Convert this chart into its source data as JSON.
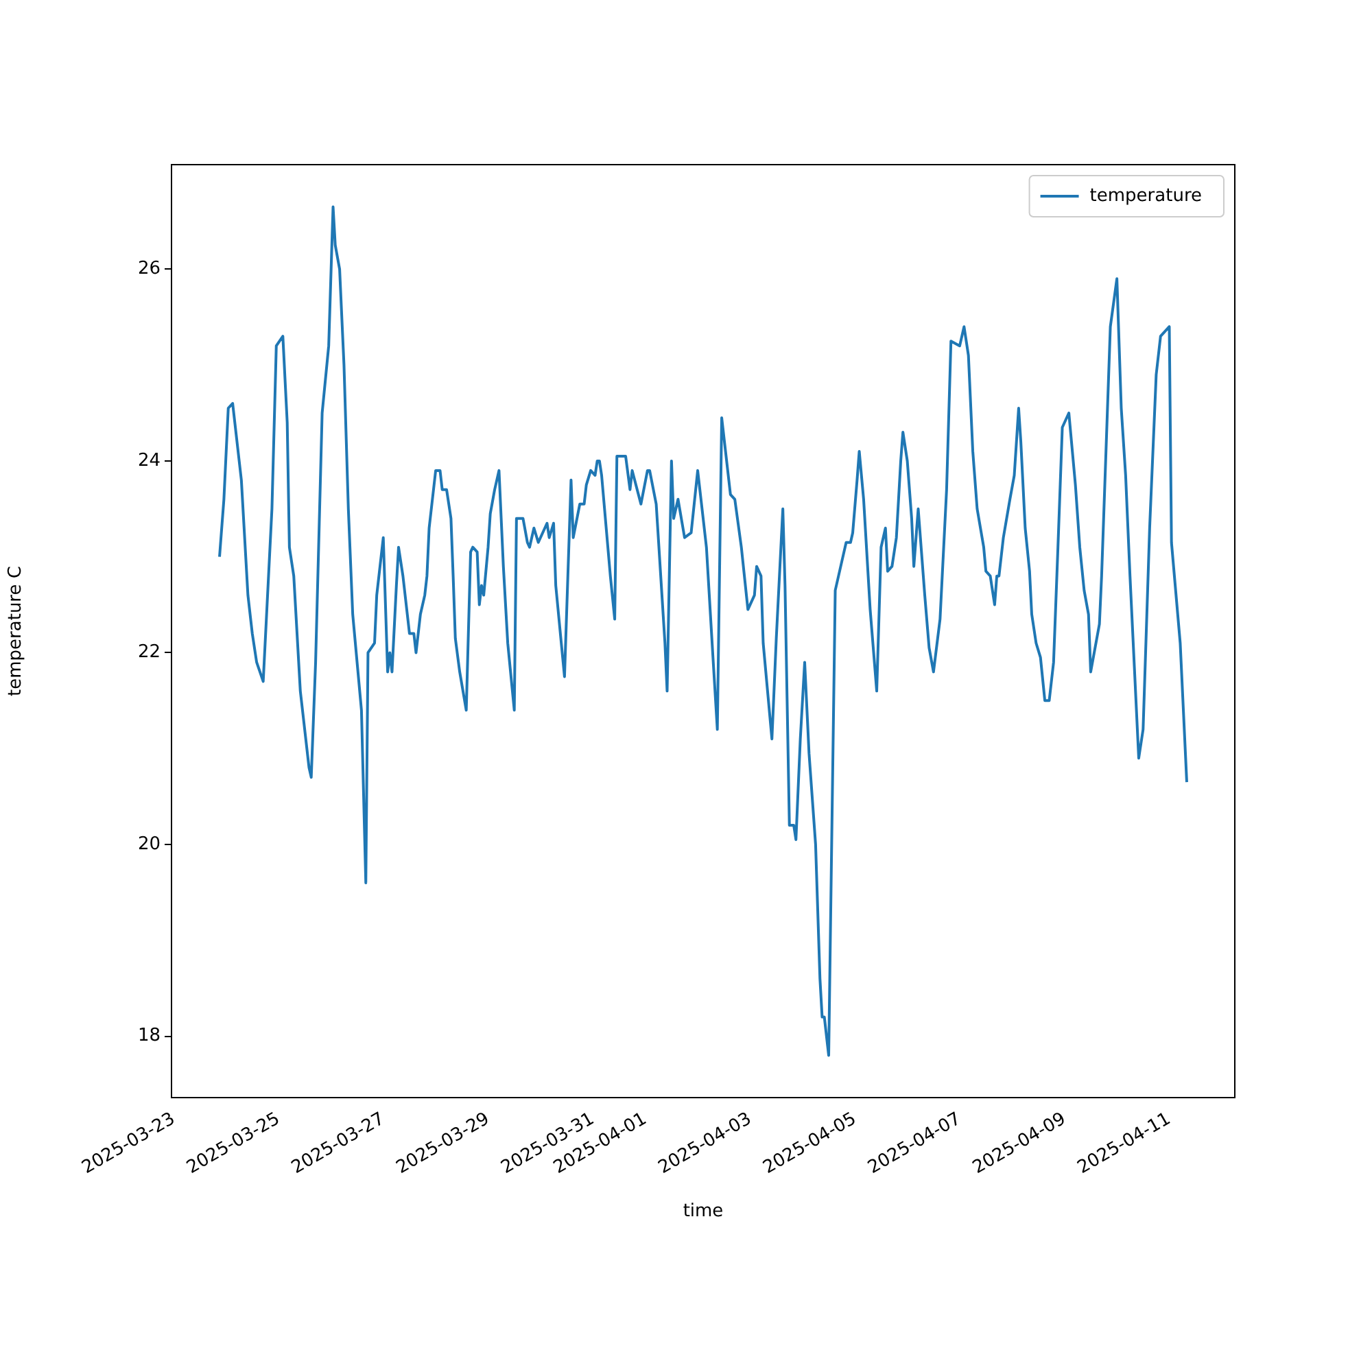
{
  "chart_data": {
    "type": "line",
    "xlabel": "time",
    "ylabel": "temperature C",
    "x": [
      "2025-03-23T21:00",
      "2025-03-23T23:00",
      "2025-03-24T01:00",
      "2025-03-24T03:00",
      "2025-03-24T07:00",
      "2025-03-24T10:00",
      "2025-03-24T12:00",
      "2025-03-24T14:00",
      "2025-03-24T17:00",
      "2025-03-24T21:00",
      "2025-03-24T23:00",
      "2025-03-25T02:00",
      "2025-03-25T04:00",
      "2025-03-25T05:00",
      "2025-03-25T07:00",
      "2025-03-25T10:00",
      "2025-03-25T14:00",
      "2025-03-25T15:00",
      "2025-03-25T17:00",
      "2025-03-25T20:00",
      "2025-03-25T23:00",
      "2025-03-26T01:00",
      "2025-03-26T02:00",
      "2025-03-26T04:00",
      "2025-03-26T06:00",
      "2025-03-26T08:00",
      "2025-03-26T10:00",
      "2025-03-26T14:00",
      "2025-03-26T16:00",
      "2025-03-26T17:00",
      "2025-03-26T20:00",
      "2025-03-26T21:00",
      "2025-03-27T00:00",
      "2025-03-27T02:00",
      "2025-03-27T03:00",
      "2025-03-27T04:00",
      "2025-03-27T06:00",
      "2025-03-27T07:00",
      "2025-03-27T09:00",
      "2025-03-27T11:00",
      "2025-03-27T12:00",
      "2025-03-27T14:00",
      "2025-03-27T15:00",
      "2025-03-27T17:00",
      "2025-03-27T19:00",
      "2025-03-27T20:00",
      "2025-03-27T21:00",
      "2025-03-28T00:00",
      "2025-03-28T02:00",
      "2025-03-28T03:00",
      "2025-03-28T05:00",
      "2025-03-28T07:00",
      "2025-03-28T08:00",
      "2025-03-28T09:00",
      "2025-03-28T11:00",
      "2025-03-28T14:00",
      "2025-03-28T16:00",
      "2025-03-28T17:00",
      "2025-03-28T19:00",
      "2025-03-28T20:00",
      "2025-03-28T21:00",
      "2025-03-28T22:00",
      "2025-03-29T00:00",
      "2025-03-29T01:00",
      "2025-03-29T03:00",
      "2025-03-29T05:00",
      "2025-03-29T07:00",
      "2025-03-29T09:00",
      "2025-03-29T12:00",
      "2025-03-29T13:00",
      "2025-03-29T16:00",
      "2025-03-29T18:00",
      "2025-03-29T19:00",
      "2025-03-29T21:00",
      "2025-03-29T23:00",
      "2025-03-30T03:00",
      "2025-03-30T04:00",
      "2025-03-30T06:00",
      "2025-03-30T07:00",
      "2025-03-30T11:00",
      "2025-03-30T14:00",
      "2025-03-30T15:00",
      "2025-03-30T18:00",
      "2025-03-30T20:00",
      "2025-03-30T21:00",
      "2025-03-30T23:00",
      "2025-03-31T01:00",
      "2025-03-31T02:00",
      "2025-03-31T03:00",
      "2025-03-31T04:00",
      "2025-03-31T08:00",
      "2025-03-31T10:00",
      "2025-03-31T11:00",
      "2025-03-31T15:00",
      "2025-03-31T17:00",
      "2025-03-31T18:00",
      "2025-03-31T22:00",
      "2025-04-01T01:00",
      "2025-04-01T02:00",
      "2025-04-01T05:00",
      "2025-04-01T09:00",
      "2025-04-01T10:00",
      "2025-04-01T12:00",
      "2025-04-01T13:00",
      "2025-04-01T15:00",
      "2025-04-01T18:00",
      "2025-04-01T21:00",
      "2025-04-02T00:00",
      "2025-04-02T04:00",
      "2025-04-02T07:00",
      "2025-04-02T09:00",
      "2025-04-02T11:00",
      "2025-04-02T15:00",
      "2025-04-02T17:00",
      "2025-04-02T20:00",
      "2025-04-02T23:00",
      "2025-04-03T02:00",
      "2025-04-03T03:00",
      "2025-04-03T05:00",
      "2025-04-03T06:00",
      "2025-04-03T10:00",
      "2025-04-03T12:00",
      "2025-04-03T15:00",
      "2025-04-03T16:00",
      "2025-04-03T18:00",
      "2025-04-03T20:00",
      "2025-04-03T21:00",
      "2025-04-03T23:00",
      "2025-04-04T01:00",
      "2025-04-04T03:00",
      "2025-04-04T06:00",
      "2025-04-04T08:00",
      "2025-04-04T09:00",
      "2025-04-04T10:00",
      "2025-04-04T12:00",
      "2025-04-04T15:00",
      "2025-04-04T18:00",
      "2025-04-04T20:00",
      "2025-04-04T22:00",
      "2025-04-04T23:00",
      "2025-04-05T01:00",
      "2025-04-05T02:00",
      "2025-04-05T04:00",
      "2025-04-05T07:00",
      "2025-04-05T10:00",
      "2025-04-05T12:00",
      "2025-04-05T14:00",
      "2025-04-05T15:00",
      "2025-04-05T17:00",
      "2025-04-05T19:00",
      "2025-04-05T21:00",
      "2025-04-05T22:00",
      "2025-04-06T00:00",
      "2025-04-06T02:00",
      "2025-04-06T03:00",
      "2025-04-06T05:00",
      "2025-04-06T08:00",
      "2025-04-06T10:00",
      "2025-04-06T12:00",
      "2025-04-06T15:00",
      "2025-04-06T18:00",
      "2025-04-06T20:00",
      "2025-04-07T00:00",
      "2025-04-07T02:00",
      "2025-04-07T04:00",
      "2025-04-07T06:00",
      "2025-04-07T08:00",
      "2025-04-07T11:00",
      "2025-04-07T12:00",
      "2025-04-07T14:00",
      "2025-04-07T16:00",
      "2025-04-07T17:00",
      "2025-04-07T18:00",
      "2025-04-07T20:00",
      "2025-04-07T23:00",
      "2025-04-08T01:00",
      "2025-04-08T03:00",
      "2025-04-08T04:00",
      "2025-04-08T06:00",
      "2025-04-08T08:00",
      "2025-04-08T09:00",
      "2025-04-08T11:00",
      "2025-04-08T13:00",
      "2025-04-08T15:00",
      "2025-04-08T17:00",
      "2025-04-08T19:00",
      "2025-04-08T21:00",
      "2025-04-08T23:00",
      "2025-04-09T02:00",
      "2025-04-09T05:00",
      "2025-04-09T07:00",
      "2025-04-09T09:00",
      "2025-04-09T11:00",
      "2025-04-09T12:00",
      "2025-04-09T16:00",
      "2025-04-09T17:00",
      "2025-04-09T21:00",
      "2025-04-10T00:00",
      "2025-04-10T02:00",
      "2025-04-10T04:00",
      "2025-04-10T06:00",
      "2025-04-10T08:00",
      "2025-04-10T10:00",
      "2025-04-10T12:00",
      "2025-04-10T15:00",
      "2025-04-10T18:00",
      "2025-04-10T20:00",
      "2025-04-11T00:00",
      "2025-04-11T01:00",
      "2025-04-11T05:00",
      "2025-04-11T08:00"
    ],
    "series": [
      {
        "name": "temperature",
        "color": "#1f77b4",
        "values": [
          23.0,
          23.6,
          24.55,
          24.6,
          23.8,
          22.6,
          22.2,
          21.9,
          21.7,
          23.5,
          25.2,
          25.3,
          24.4,
          23.1,
          22.8,
          21.6,
          20.8,
          20.7,
          21.9,
          24.5,
          25.2,
          26.65,
          26.25,
          26.0,
          25.0,
          23.5,
          22.4,
          21.4,
          19.6,
          22.0,
          22.1,
          22.6,
          23.2,
          21.8,
          22.0,
          21.8,
          22.7,
          23.1,
          22.8,
          22.4,
          22.2,
          22.2,
          22.0,
          22.4,
          22.6,
          22.8,
          23.3,
          23.9,
          23.9,
          23.7,
          23.7,
          23.4,
          22.8,
          22.15,
          21.8,
          21.4,
          23.05,
          23.1,
          23.05,
          22.5,
          22.7,
          22.6,
          23.1,
          23.45,
          23.7,
          23.9,
          22.9,
          22.1,
          21.4,
          23.4,
          23.4,
          23.15,
          23.1,
          23.3,
          23.15,
          23.35,
          23.2,
          23.35,
          22.7,
          21.75,
          23.8,
          23.2,
          23.55,
          23.55,
          23.75,
          23.9,
          23.85,
          24.0,
          24.0,
          23.85,
          22.8,
          22.35,
          24.05,
          24.05,
          23.7,
          23.9,
          23.55,
          23.9,
          23.9,
          23.55,
          22.1,
          21.6,
          24.0,
          23.4,
          23.6,
          23.2,
          23.25,
          23.9,
          23.1,
          21.95,
          21.2,
          24.45,
          23.65,
          23.6,
          23.1,
          22.45,
          22.6,
          22.9,
          22.8,
          22.1,
          21.1,
          22.15,
          23.5,
          22.7,
          20.2,
          20.2,
          20.05,
          21.1,
          21.9,
          20.95,
          20.0,
          18.6,
          18.2,
          18.2,
          17.8,
          22.65,
          22.95,
          23.15,
          23.15,
          23.25,
          23.8,
          24.1,
          23.6,
          22.45,
          21.6,
          23.1,
          23.3,
          22.85,
          22.9,
          23.2,
          24.0,
          24.3,
          24.0,
          23.4,
          22.9,
          23.5,
          22.6,
          22.05,
          21.8,
          22.35,
          23.7,
          25.25,
          25.2,
          25.4,
          25.1,
          24.1,
          23.5,
          23.1,
          22.85,
          22.8,
          22.5,
          22.8,
          22.8,
          23.2,
          23.6,
          23.85,
          24.55,
          24.2,
          23.3,
          22.85,
          22.4,
          22.1,
          21.95,
          21.5,
          21.5,
          21.9,
          23.1,
          24.35,
          24.5,
          23.75,
          23.1,
          22.65,
          22.4,
          21.8,
          22.3,
          22.8,
          25.4,
          25.9,
          24.55,
          23.85,
          22.8,
          21.85,
          20.9,
          21.2,
          23.3,
          24.9,
          25.3,
          25.4,
          23.15,
          22.1,
          20.65
        ]
      }
    ],
    "xlim": [
      "2025-03-22T23:00",
      "2025-04-12T06:00"
    ],
    "xticks": [
      "2025-03-23",
      "2025-03-25",
      "2025-03-27",
      "2025-03-29",
      "2025-03-31",
      "2025-04-01",
      "2025-04-03",
      "2025-04-05",
      "2025-04-07",
      "2025-04-09",
      "2025-04-11"
    ],
    "ylim": [
      17.36,
      27.09
    ],
    "yticks": [
      18,
      20,
      22,
      24,
      26
    ],
    "legend": "top right",
    "grid": false,
    "marker": "none",
    "line_style": "solid"
  }
}
